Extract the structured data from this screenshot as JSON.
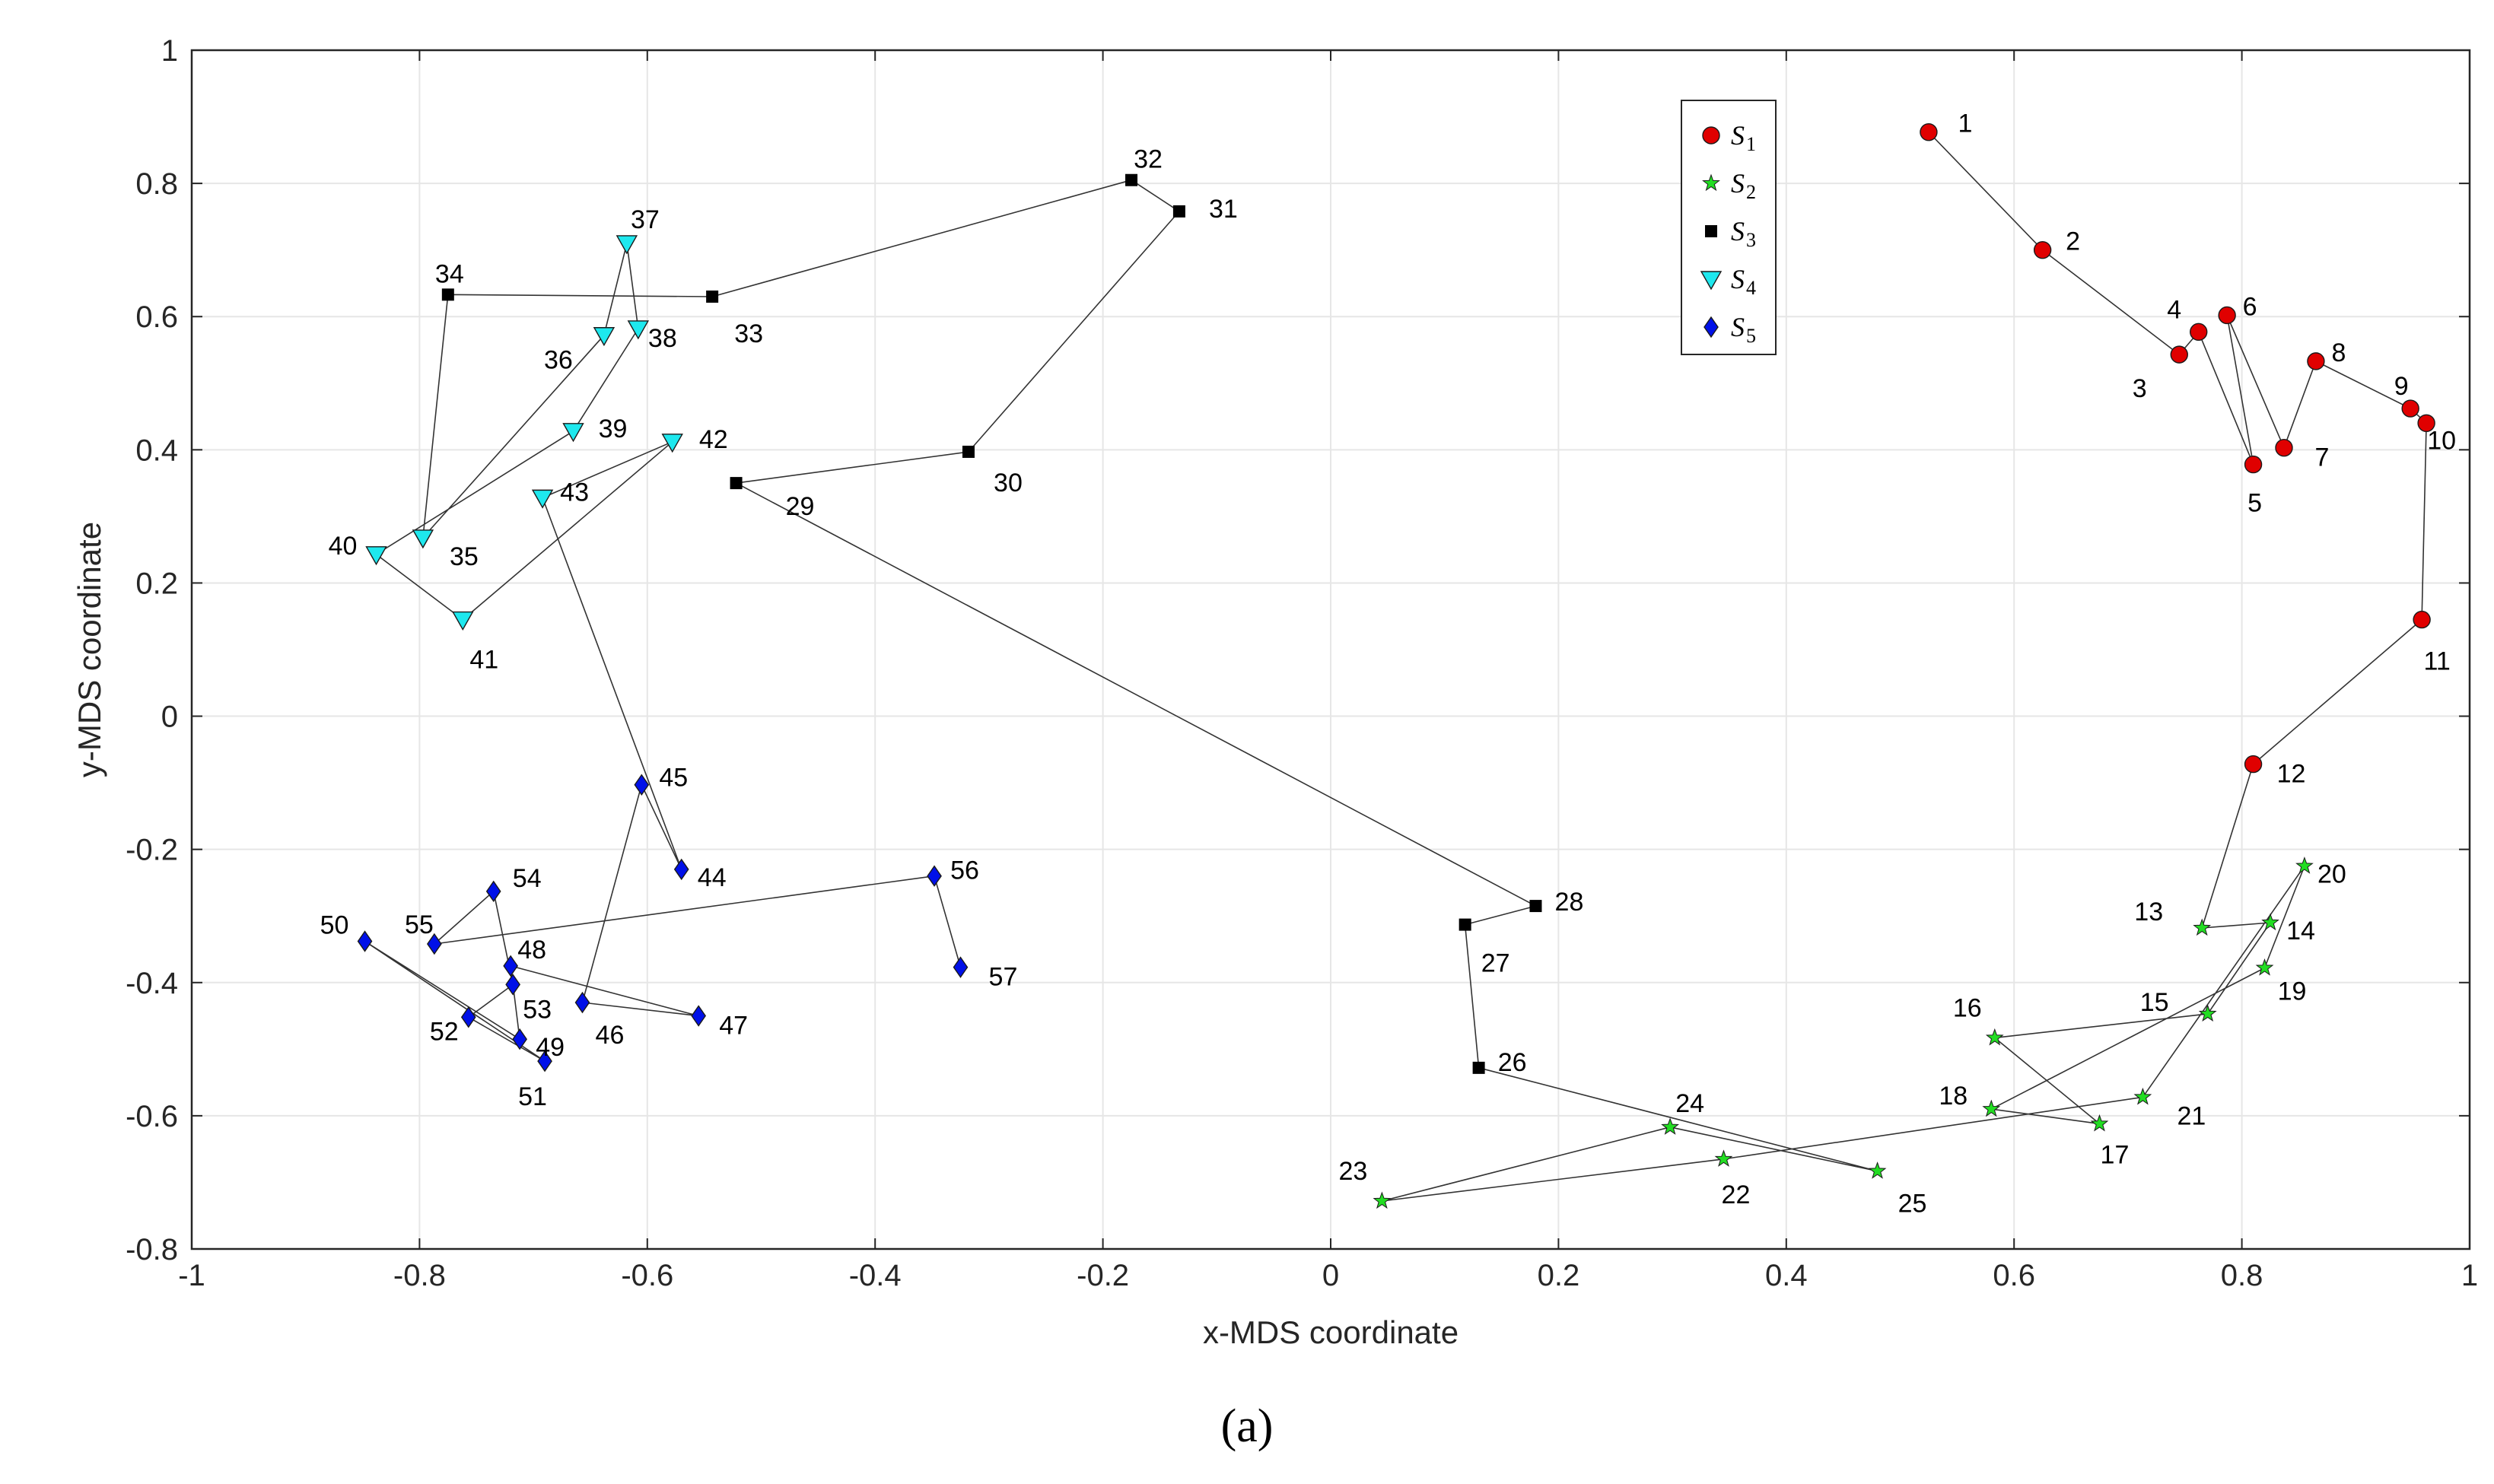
{
  "caption": "(a)",
  "chart_data": {
    "type": "scatter",
    "title": "",
    "xlabel": "x-MDS coordinate",
    "ylabel": "y-MDS coordinate",
    "xlim": [
      -1,
      1
    ],
    "ylim": [
      -0.8,
      1
    ],
    "xticks": [
      -1,
      -0.8,
      -0.6,
      -0.4,
      -0.2,
      0,
      0.2,
      0.4,
      0.6,
      0.8,
      1
    ],
    "xtick_labels": [
      "-1",
      "-0.8",
      "-0.6",
      "-0.4",
      "-0.2",
      "0",
      "0.2",
      "0.4",
      "0.6",
      "0.8",
      "1"
    ],
    "yticks": [
      -0.8,
      -0.6,
      -0.4,
      -0.2,
      0,
      0.2,
      0.4,
      0.6,
      0.8,
      1
    ],
    "ytick_labels": [
      "-0.8",
      "-0.6",
      "-0.4",
      "-0.2",
      "0",
      "0.2",
      "0.4",
      "0.6",
      "0.8",
      "1"
    ],
    "grid": true,
    "legend_position": "top-right",
    "trajectory_line": "connects points 1 to 57 in order",
    "series": [
      {
        "name": "S1",
        "legend_letter": "S",
        "legend_sub": "1",
        "marker": "circle",
        "color": "#e00000",
        "points": [
          {
            "id": "1",
            "x": 0.525,
            "y": 0.877
          },
          {
            "id": "2",
            "x": 0.625,
            "y": 0.7
          },
          {
            "id": "3",
            "x": 0.745,
            "y": 0.543
          },
          {
            "id": "4",
            "x": 0.762,
            "y": 0.577
          },
          {
            "id": "5",
            "x": 0.81,
            "y": 0.378
          },
          {
            "id": "6",
            "x": 0.787,
            "y": 0.602
          },
          {
            "id": "7",
            "x": 0.837,
            "y": 0.403
          },
          {
            "id": "8",
            "x": 0.865,
            "y": 0.533
          },
          {
            "id": "9",
            "x": 0.948,
            "y": 0.462
          },
          {
            "id": "10",
            "x": 0.962,
            "y": 0.44
          },
          {
            "id": "11",
            "x": 0.958,
            "y": 0.145
          },
          {
            "id": "12",
            "x": 0.81,
            "y": -0.072
          }
        ]
      },
      {
        "name": "S2",
        "legend_letter": "S",
        "legend_sub": "2",
        "marker": "star",
        "color": "#22dd22",
        "points": [
          {
            "id": "13",
            "x": 0.765,
            "y": -0.318
          },
          {
            "id": "14",
            "x": 0.825,
            "y": -0.31
          },
          {
            "id": "15",
            "x": 0.77,
            "y": -0.447
          },
          {
            "id": "16",
            "x": 0.583,
            "y": -0.483
          },
          {
            "id": "17",
            "x": 0.675,
            "y": -0.612
          },
          {
            "id": "18",
            "x": 0.58,
            "y": -0.59
          },
          {
            "id": "19",
            "x": 0.82,
            "y": -0.378
          },
          {
            "id": "20",
            "x": 0.855,
            "y": -0.225
          },
          {
            "id": "21",
            "x": 0.713,
            "y": -0.572
          },
          {
            "id": "22",
            "x": 0.345,
            "y": -0.665
          },
          {
            "id": "23",
            "x": 0.045,
            "y": -0.728
          },
          {
            "id": "24",
            "x": 0.298,
            "y": -0.617
          },
          {
            "id": "25",
            "x": 0.48,
            "y": -0.683
          }
        ]
      },
      {
        "name": "S3",
        "legend_letter": "S",
        "legend_sub": "3",
        "marker": "square",
        "color": "#000000",
        "points": [
          {
            "id": "26",
            "x": 0.13,
            "y": -0.528
          },
          {
            "id": "27",
            "x": 0.118,
            "y": -0.313
          },
          {
            "id": "28",
            "x": 0.18,
            "y": -0.285
          },
          {
            "id": "29",
            "x": -0.522,
            "y": 0.35
          },
          {
            "id": "30",
            "x": -0.318,
            "y": 0.397
          },
          {
            "id": "31",
            "x": -0.133,
            "y": 0.758
          },
          {
            "id": "32",
            "x": -0.175,
            "y": 0.805
          },
          {
            "id": "33",
            "x": -0.543,
            "y": 0.63
          },
          {
            "id": "34",
            "x": -0.775,
            "y": 0.633
          }
        ]
      },
      {
        "name": "S4",
        "legend_letter": "S",
        "legend_sub": "4",
        "marker": "triangle-down",
        "color": "#1ee8ee",
        "points": [
          {
            "id": "35",
            "x": -0.797,
            "y": 0.268
          },
          {
            "id": "36",
            "x": -0.638,
            "y": 0.572
          },
          {
            "id": "37",
            "x": -0.618,
            "y": 0.71
          },
          {
            "id": "38",
            "x": -0.608,
            "y": 0.582
          },
          {
            "id": "39",
            "x": -0.665,
            "y": 0.428
          },
          {
            "id": "40",
            "x": -0.838,
            "y": 0.243
          },
          {
            "id": "41",
            "x": -0.762,
            "y": 0.145
          },
          {
            "id": "42",
            "x": -0.578,
            "y": 0.412
          },
          {
            "id": "43",
            "x": -0.692,
            "y": 0.328
          }
        ]
      },
      {
        "name": "S5",
        "legend_letter": "S",
        "legend_sub": "5",
        "marker": "diamond",
        "color": "#0010e8",
        "points": [
          {
            "id": "44",
            "x": -0.57,
            "y": -0.23
          },
          {
            "id": "45",
            "x": -0.605,
            "y": -0.103
          },
          {
            "id": "46",
            "x": -0.657,
            "y": -0.43
          },
          {
            "id": "47",
            "x": -0.555,
            "y": -0.45
          },
          {
            "id": "48",
            "x": -0.72,
            "y": -0.375
          },
          {
            "id": "49",
            "x": -0.712,
            "y": -0.485
          },
          {
            "id": "50",
            "x": -0.848,
            "y": -0.338
          },
          {
            "id": "51",
            "x": -0.69,
            "y": -0.518
          },
          {
            "id": "52",
            "x": -0.757,
            "y": -0.452
          },
          {
            "id": "53",
            "x": -0.718,
            "y": -0.403
          },
          {
            "id": "54",
            "x": -0.735,
            "y": -0.263
          },
          {
            "id": "55",
            "x": -0.787,
            "y": -0.342
          },
          {
            "id": "56",
            "x": -0.348,
            "y": -0.24
          },
          {
            "id": "57",
            "x": -0.325,
            "y": -0.377
          }
        ]
      }
    ]
  }
}
